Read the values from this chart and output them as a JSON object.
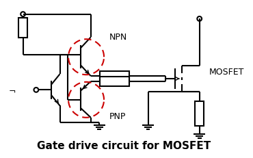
{
  "title": "Gate drive circuit for MOSFET",
  "bg_color": "#ffffff",
  "line_color": "#000000",
  "red_color": "#cc0000",
  "title_fontsize": 11,
  "label_fontsize": 9,
  "figsize": [
    3.7,
    2.32
  ],
  "dpi": 100
}
